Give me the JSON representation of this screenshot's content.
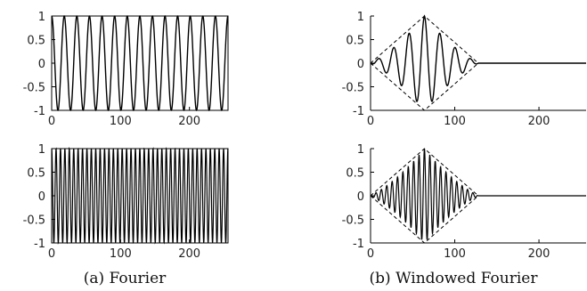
{
  "captions": {
    "left": "(a) Fourier",
    "right": "(b) Windowed Fourier"
  },
  "chart_data": [
    {
      "type": "line",
      "name_hint": "fourier-low-frequency",
      "xlim": [
        0,
        256
      ],
      "ylim": [
        -1,
        1
      ],
      "xticks": [
        0,
        100,
        200
      ],
      "xtick_labels": [
        "0",
        "100",
        "200"
      ],
      "yticks": [
        1,
        0.5,
        0,
        -0.5,
        -1
      ],
      "ytick_labels": [
        "1",
        "0.5",
        "0",
        "-0.5",
        "-1"
      ],
      "grid": false,
      "signal": {
        "kind": "cosine",
        "cycles_per_sample": 0.0547,
        "amplitude": 1,
        "x_range": [
          0,
          256
        ]
      }
    },
    {
      "type": "line",
      "name_hint": "fourier-high-frequency",
      "xlim": [
        0,
        256
      ],
      "ylim": [
        -1,
        1
      ],
      "xticks": [
        0,
        100,
        200
      ],
      "xtick_labels": [
        "0",
        "100",
        "200"
      ],
      "yticks": [
        1,
        0.5,
        0,
        -0.5,
        -1
      ],
      "ytick_labels": [
        "1",
        "0.5",
        "0",
        "-0.5",
        "-1"
      ],
      "grid": false,
      "signal": {
        "kind": "cosine",
        "cycles_per_sample": 0.1563,
        "amplitude": 1,
        "x_range": [
          0,
          256
        ]
      }
    },
    {
      "type": "line",
      "name_hint": "windowed-low-frequency",
      "xlim": [
        0,
        256
      ],
      "ylim": [
        -1,
        1
      ],
      "xticks": [
        0,
        100,
        200
      ],
      "xtick_labels": [
        "0",
        "100",
        "200"
      ],
      "yticks": [
        1,
        0.5,
        0,
        -0.5,
        -1
      ],
      "ytick_labels": [
        "1",
        "0.5",
        "0",
        "-0.5",
        "-1"
      ],
      "grid": false,
      "signal": {
        "kind": "windowed-cosine",
        "cycles_per_sample": 0.0547,
        "amplitude": 1,
        "window": [
          0,
          128
        ],
        "window_center": 64
      },
      "envelope": {
        "style": "dashed",
        "shape": "triangle",
        "points": [
          [
            0,
            0
          ],
          [
            64,
            1
          ],
          [
            128,
            0
          ]
        ]
      }
    },
    {
      "type": "line",
      "name_hint": "windowed-high-frequency",
      "xlim": [
        0,
        256
      ],
      "ylim": [
        -1,
        1
      ],
      "xticks": [
        0,
        100,
        200
      ],
      "xtick_labels": [
        "0",
        "100",
        "200"
      ],
      "yticks": [
        1,
        0.5,
        0,
        -0.5,
        -1
      ],
      "ytick_labels": [
        "1",
        "0.5",
        "0",
        "-0.5",
        "-1"
      ],
      "grid": false,
      "signal": {
        "kind": "windowed-cosine",
        "cycles_per_sample": 0.1563,
        "amplitude": 1,
        "window": [
          0,
          128
        ],
        "window_center": 64
      },
      "envelope": {
        "style": "dashed",
        "shape": "triangle",
        "points": [
          [
            0,
            0
          ],
          [
            64,
            1
          ],
          [
            128,
            0
          ]
        ]
      }
    }
  ]
}
